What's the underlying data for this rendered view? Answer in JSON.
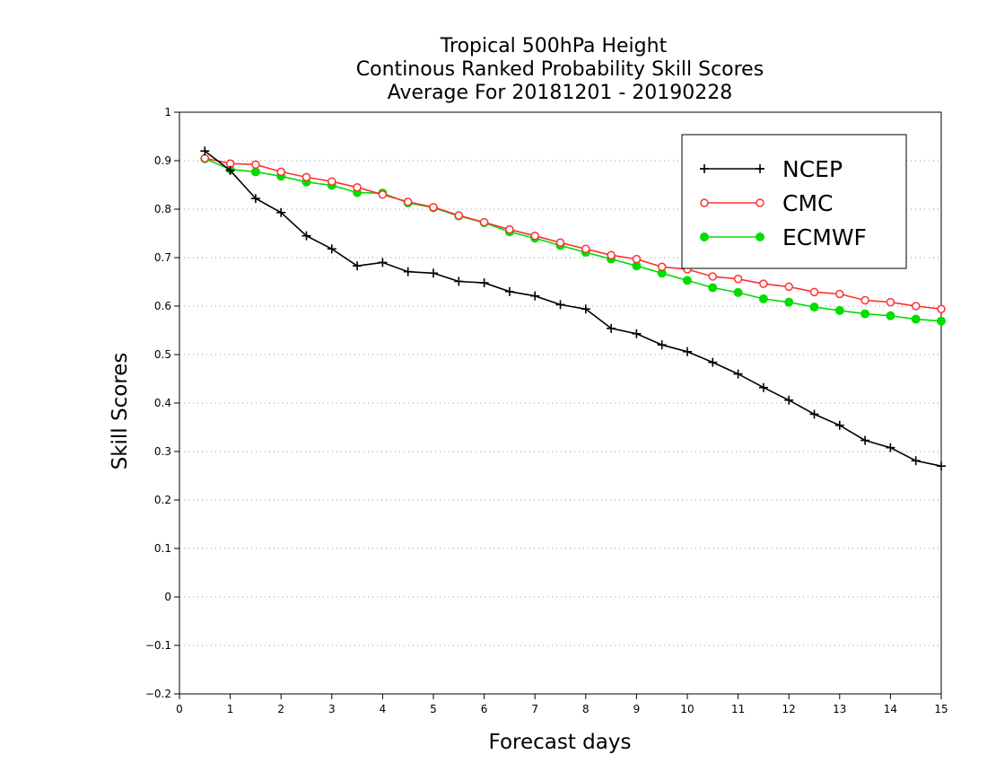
{
  "chart_data": {
    "type": "line",
    "title": [
      "Tropical 500hPa Height",
      "Continous Ranked Probability Skill Scores",
      "Average For 20181201 - 20190228"
    ],
    "xlabel": "Forecast days",
    "ylabel": "Skill Scores",
    "xlim": [
      0,
      15
    ],
    "ylim": [
      -0.2,
      1
    ],
    "xticks": [
      0,
      1,
      2,
      3,
      4,
      5,
      6,
      7,
      8,
      9,
      10,
      11,
      12,
      13,
      14,
      15
    ],
    "yticks": [
      -0.2,
      -0.1,
      0,
      0.1,
      0.2,
      0.3,
      0.4,
      0.5,
      0.6,
      0.7,
      0.8,
      0.9,
      1
    ],
    "ytick_labels": [
      "−0.2",
      "−0.1",
      "0",
      "0.1",
      "0.2",
      "0.3",
      "0.4",
      "0.5",
      "0.6",
      "0.7",
      "0.8",
      "0.9",
      "1"
    ],
    "grid": "horizontal dotted",
    "legend_position": "top-right",
    "x": [
      0.5,
      1,
      1.5,
      2,
      2.5,
      3,
      3.5,
      4,
      4.5,
      5,
      5.5,
      6,
      6.5,
      7,
      7.5,
      8,
      8.5,
      9,
      9.5,
      10,
      10.5,
      11,
      11.5,
      12,
      12.5,
      13,
      13.5,
      14,
      14.5,
      15
    ],
    "series": [
      {
        "name": "NCEP",
        "color": "#000000",
        "marker": "plus",
        "values": [
          0.92,
          0.88,
          0.822,
          0.793,
          0.745,
          0.718,
          0.683,
          0.69,
          0.671,
          0.668,
          0.651,
          0.648,
          0.63,
          0.621,
          0.603,
          0.594,
          0.554,
          0.543,
          0.52,
          0.506,
          0.484,
          0.46,
          0.432,
          0.406,
          0.377,
          0.354,
          0.323,
          0.308,
          0.281,
          0.27
        ]
      },
      {
        "name": "CMC",
        "color": "#ff3030",
        "marker": "open-circle",
        "values": [
          0.905,
          0.894,
          0.892,
          0.877,
          0.866,
          0.857,
          0.845,
          0.83,
          0.815,
          0.804,
          0.787,
          0.773,
          0.758,
          0.745,
          0.731,
          0.718,
          0.705,
          0.697,
          0.681,
          0.676,
          0.661,
          0.656,
          0.646,
          0.64,
          0.629,
          0.625,
          0.612,
          0.608,
          0.6,
          0.594
        ]
      },
      {
        "name": "ECMWF",
        "color": "#00dd00",
        "marker": "filled-circle",
        "values": [
          0.904,
          0.882,
          0.877,
          0.868,
          0.856,
          0.849,
          0.834,
          0.833,
          0.813,
          0.803,
          0.786,
          0.772,
          0.753,
          0.74,
          0.725,
          0.711,
          0.697,
          0.683,
          0.668,
          0.653,
          0.638,
          0.628,
          0.615,
          0.608,
          0.598,
          0.591,
          0.584,
          0.58,
          0.573,
          0.569
        ]
      }
    ]
  }
}
